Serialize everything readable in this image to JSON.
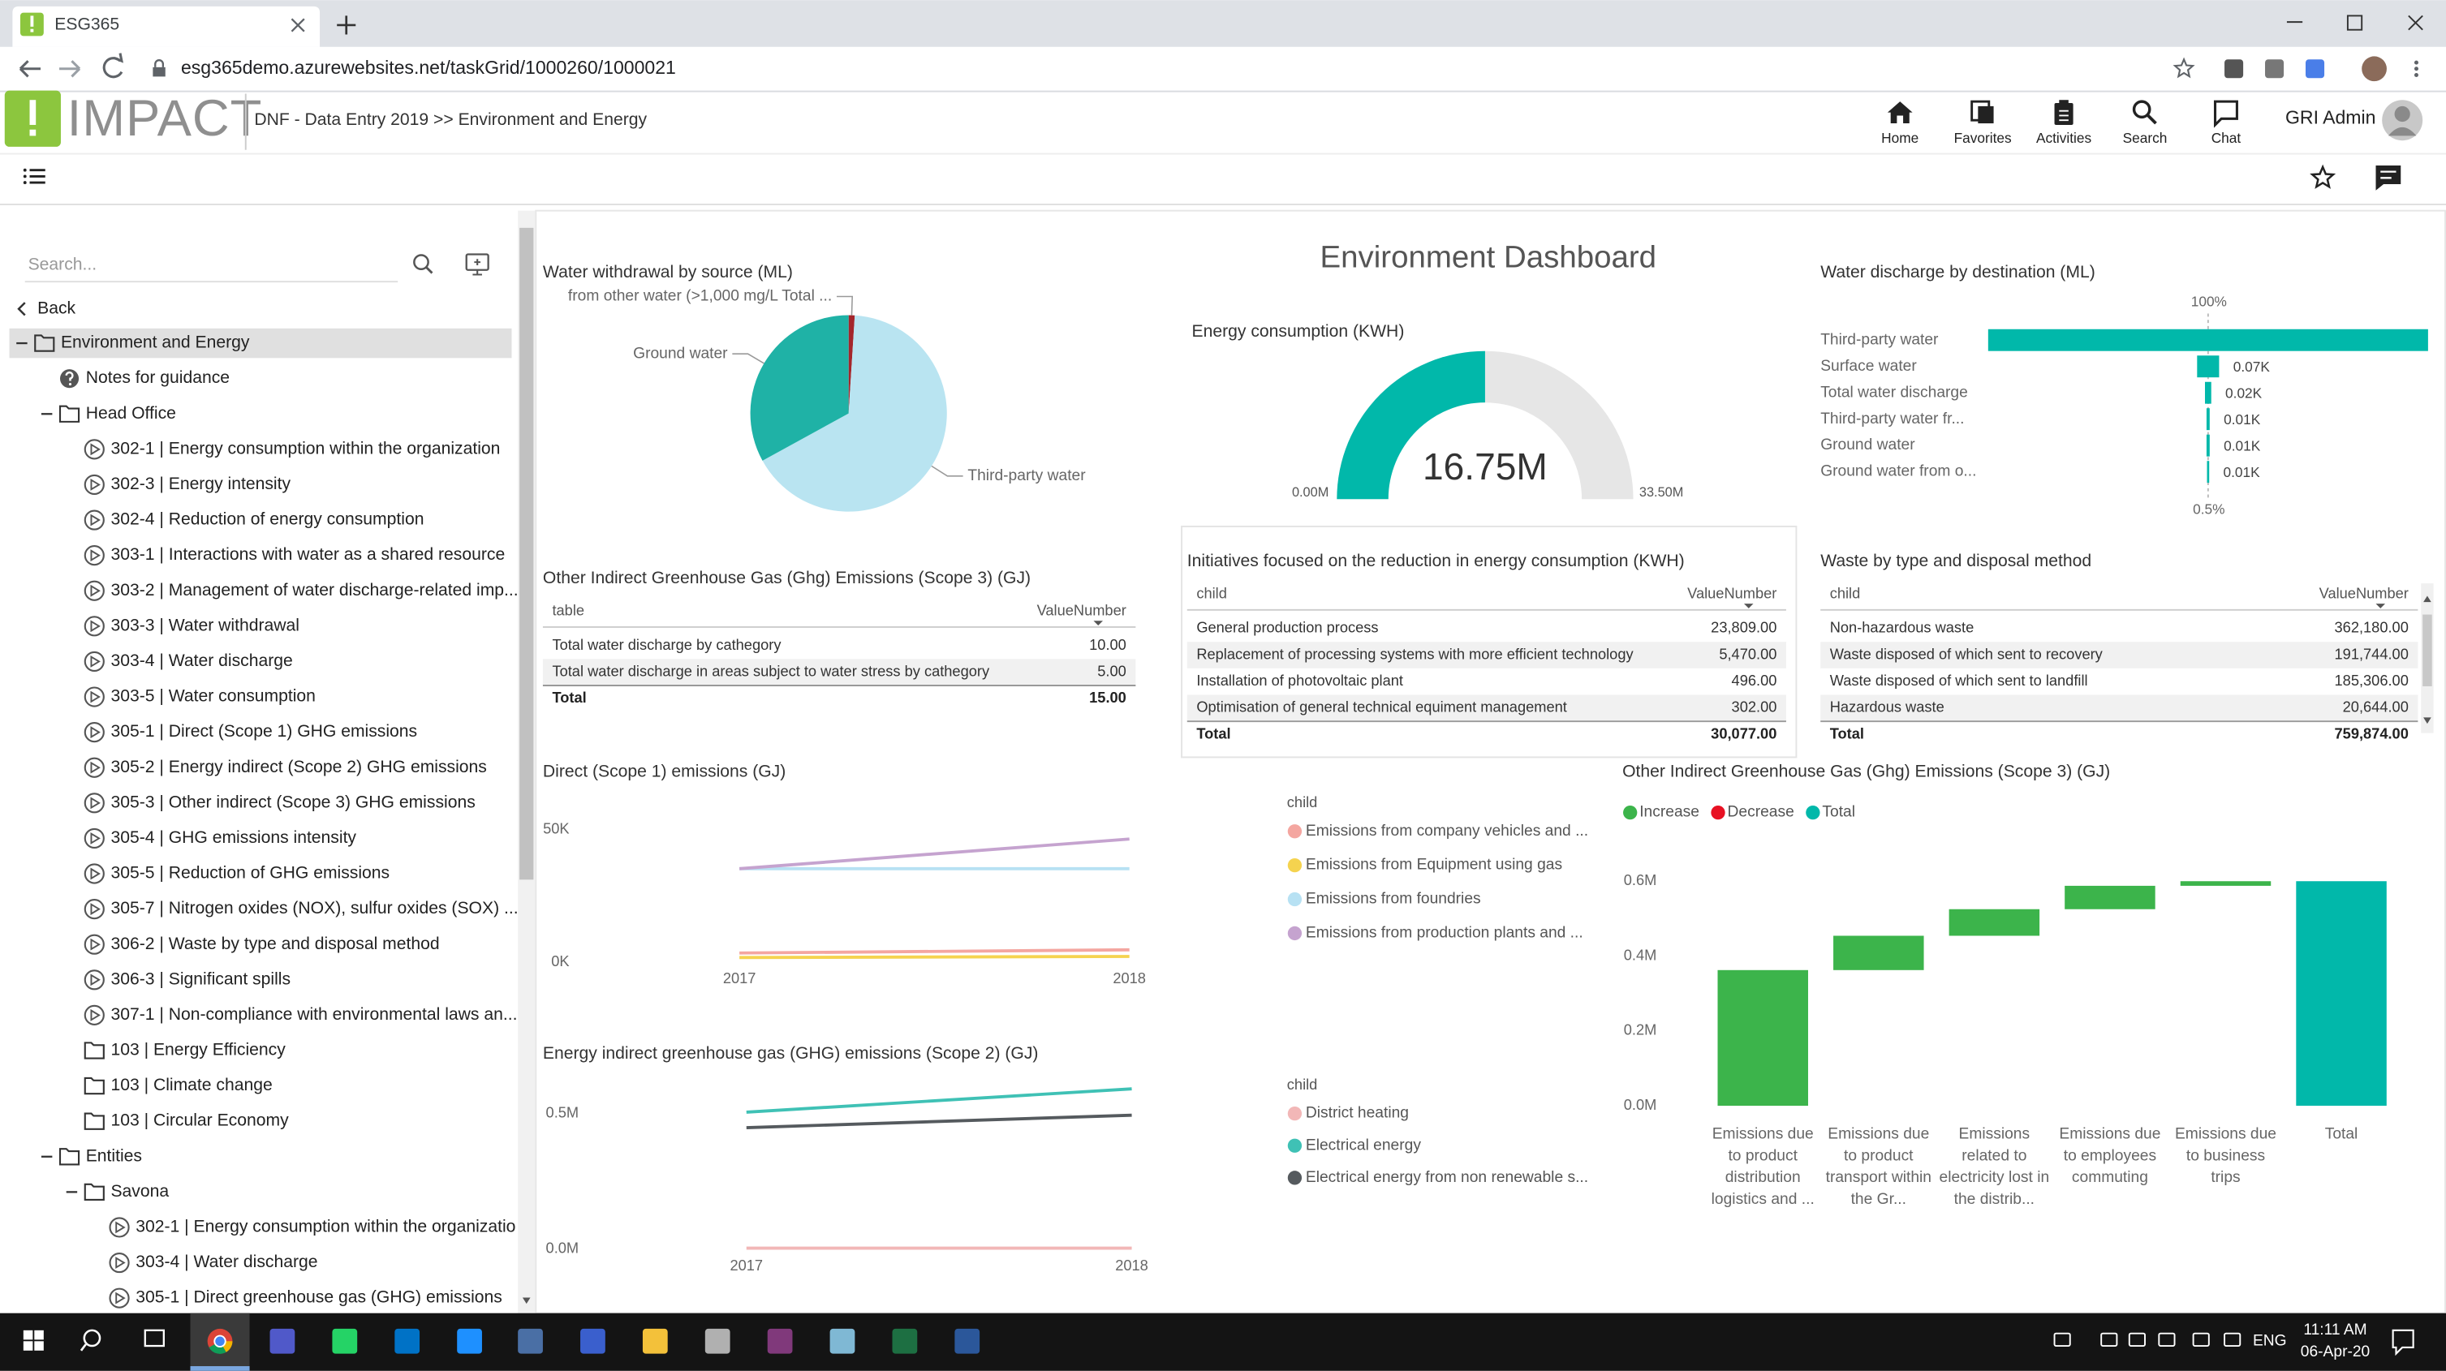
{
  "browser": {
    "tab_title": "ESG365",
    "url": "esg365demo.azurewebsites.net/taskGrid/1000260/1000021"
  },
  "header": {
    "logo": "IMPACT",
    "breadcrumb": "DNF - Data Entry 2019 >> Environment and Energy",
    "nav": [
      "Home",
      "Favorites",
      "Activities",
      "Search",
      "Chat"
    ],
    "user": "GRI Admin"
  },
  "sidebar": {
    "search_placeholder": "Search...",
    "back": "Back",
    "items": [
      {
        "label": "Environment and Energy",
        "level": 0,
        "icon": "folder",
        "expanded": true,
        "selected": true
      },
      {
        "label": "Notes for guidance",
        "level": 1,
        "icon": "help"
      },
      {
        "label": "Head Office",
        "level": 1,
        "icon": "folder",
        "expanded": true
      },
      {
        "label": "302-1 | Energy consumption within the organization",
        "level": 2,
        "icon": "task"
      },
      {
        "label": "302-3 | Energy intensity",
        "level": 2,
        "icon": "task"
      },
      {
        "label": "302-4 | Reduction of energy consumption",
        "level": 2,
        "icon": "task"
      },
      {
        "label": "303-1 | Interactions with water as a shared resource",
        "level": 2,
        "icon": "task"
      },
      {
        "label": "303-2 | Management of water discharge-related imp...",
        "level": 2,
        "icon": "task"
      },
      {
        "label": "303-3 | Water withdrawal",
        "level": 2,
        "icon": "task"
      },
      {
        "label": "303-4 | Water discharge",
        "level": 2,
        "icon": "task"
      },
      {
        "label": "303-5 | Water consumption",
        "level": 2,
        "icon": "task"
      },
      {
        "label": "305-1 | Direct (Scope 1) GHG emissions",
        "level": 2,
        "icon": "task"
      },
      {
        "label": "305-2 | Energy indirect (Scope 2) GHG emissions",
        "level": 2,
        "icon": "task"
      },
      {
        "label": "305-3 | Other indirect (Scope 3) GHG emissions",
        "level": 2,
        "icon": "task"
      },
      {
        "label": "305-4 | GHG emissions intensity",
        "level": 2,
        "icon": "task"
      },
      {
        "label": "305-5 | Reduction of GHG emissions",
        "level": 2,
        "icon": "task"
      },
      {
        "label": "305-7 | Nitrogen oxides (NOX), sulfur oxides (SOX) ...",
        "level": 2,
        "icon": "task"
      },
      {
        "label": "306-2 | Waste by type and disposal method",
        "level": 2,
        "icon": "task"
      },
      {
        "label": "306-3 | Significant spills",
        "level": 2,
        "icon": "task"
      },
      {
        "label": "307-1 | Non-compliance with environmental laws an...",
        "level": 2,
        "icon": "task"
      },
      {
        "label": "103 | Energy Efficiency",
        "level": 2,
        "icon": "folder"
      },
      {
        "label": "103 | Climate change",
        "level": 2,
        "icon": "folder"
      },
      {
        "label": "103 | Circular Economy",
        "level": 2,
        "icon": "folder"
      },
      {
        "label": "Entities",
        "level": 1,
        "icon": "folder",
        "expanded": true
      },
      {
        "label": "Savona",
        "level": 2,
        "icon": "folder",
        "expanded": true
      },
      {
        "label": "302-1 | Energy consumption within the organizatio",
        "level": 3,
        "icon": "task"
      },
      {
        "label": "303-4 | Water discharge",
        "level": 3,
        "icon": "task"
      },
      {
        "label": "305-1 | Direct greenhouse gas (GHG) emissions",
        "level": 3,
        "icon": "task"
      }
    ]
  },
  "dashboard": {
    "title": "Environment Dashboard",
    "water_withdrawal": {
      "type": "pie",
      "title": "Water withdrawal by source (ML)",
      "categories": [
        "from other water (>1,000 mg/L Total ...",
        "Third-party water",
        "Ground water"
      ],
      "values": [
        1,
        66,
        33
      ],
      "colors": [
        "#a4262c",
        "#b9e4f1",
        "#1fb2a6"
      ]
    },
    "energy_gauge": {
      "type": "gauge",
      "title": "Energy consumption (KWH)",
      "value": 16750000,
      "value_label": "16.75M",
      "min": {
        "value": 0,
        "label": "0.00M"
      },
      "max": {
        "value": 33500000,
        "label": "33.50M"
      },
      "color": "#01b8aa",
      "track_color": "#e6e6e6"
    },
    "water_discharge": {
      "type": "funnel",
      "title": "Water discharge by destination (ML)",
      "categories": [
        "Third-party water",
        "Surface water",
        "Total water discharge",
        "Third-party water fr...",
        "Ground water",
        "Ground water from o..."
      ],
      "values": [
        1400,
        70,
        20,
        10,
        10,
        7
      ],
      "value_labels": [
        null,
        "0.07K",
        "0.02K",
        "0.01K",
        "0.01K",
        "0.01K"
      ],
      "top_label": "100%",
      "bottom_label": "0.5%",
      "color": "#01b8aa"
    },
    "scope3_table": {
      "title": "Other Indirect Greenhouse Gas (Ghg) Emissions (Scope 3) (GJ)",
      "columns": [
        "table",
        "ValueNumber"
      ],
      "rows": [
        [
          "Total water discharge by cathegory",
          "10.00"
        ],
        [
          "Total water discharge in areas subject to water stress by cathegory",
          "5.00"
        ]
      ],
      "total": [
        "Total",
        "15.00"
      ]
    },
    "initiatives_table": {
      "title": "Initiatives focused on the reduction in energy consumption (KWH)",
      "columns": [
        "child",
        "ValueNumber"
      ],
      "rows": [
        [
          "General production process",
          "23,809.00"
        ],
        [
          "Replacement of processing systems with more efficient technology",
          "5,470.00"
        ],
        [
          "Installation of photovoltaic plant",
          "496.00"
        ],
        [
          "Optimisation of general technical equiment management",
          "302.00"
        ]
      ],
      "total": [
        "Total",
        "30,077.00"
      ]
    },
    "waste_table": {
      "title": "Waste by type and disposal method",
      "columns": [
        "child",
        "ValueNumber"
      ],
      "rows": [
        [
          "Non-hazardous waste",
          "362,180.00"
        ],
        [
          "Waste disposed of which sent to recovery",
          "191,744.00"
        ],
        [
          "Waste disposed of which sent to landfill",
          "185,306.00"
        ],
        [
          "Hazardous waste",
          "20,644.00"
        ]
      ],
      "total": [
        "Total",
        "759,874.00"
      ]
    },
    "direct_emissions": {
      "type": "line",
      "title": "Direct (Scope 1) emissions (GJ)",
      "categories": [
        "2017",
        "2018"
      ],
      "ylim": [
        0,
        60000
      ],
      "yticks": [
        {
          "value": 0,
          "label": "0K"
        },
        {
          "value": 50000,
          "label": "50K"
        }
      ],
      "legend_title": "child",
      "series": [
        {
          "name": "Emissions from company vehicles and ...",
          "color": "#f4a6a0",
          "values": [
            3500,
            4700
          ]
        },
        {
          "name": "Emissions from Equipment using gas",
          "color": "#f5d34f",
          "values": [
            1800,
            2200
          ]
        },
        {
          "name": "Emissions from foundries",
          "color": "#b7e1f3",
          "values": [
            35300,
            35300
          ]
        },
        {
          "name": "Emissions from production plants and ...",
          "color": "#c5a3cf",
          "values": [
            35300,
            46500
          ]
        }
      ]
    },
    "indirect_emissions": {
      "type": "line",
      "title": "Energy indirect greenhouse gas (GHG) emissions (Scope 2) (GJ)",
      "categories": [
        "2017",
        "2018"
      ],
      "ylim": [
        0,
        600000
      ],
      "yticks": [
        {
          "value": 0,
          "label": "0.0M"
        },
        {
          "value": 500000,
          "label": "0.5M"
        }
      ],
      "legend_title": "child",
      "series": [
        {
          "name": "District heating",
          "color": "#f2b7b7",
          "values": [
            4000,
            4000
          ]
        },
        {
          "name": "Electrical energy",
          "color": "#3fc1b5",
          "values": [
            505000,
            591000
          ]
        },
        {
          "name": "Electrical energy from non renewable s...",
          "color": "#555a5e",
          "values": [
            448000,
            494000
          ]
        }
      ]
    },
    "scope3_waterfall": {
      "type": "waterfall",
      "title": "Other Indirect Greenhouse Gas (Ghg) Emissions (Scope 3) (GJ)",
      "legend": [
        {
          "name": "Increase",
          "color": "#3cb44b"
        },
        {
          "name": "Decrease",
          "color": "#e81123"
        },
        {
          "name": "Total",
          "color": "#01b8aa"
        }
      ],
      "categories": [
        "Emissions due to product distribution logistics and ...",
        "Emissions due to product transport within the Gr...",
        "Emissions related to electricity lost in the distrib...",
        "Emissions due to employees commuting",
        "Emissions due to business trips",
        "Total"
      ],
      "values": [
        362500,
        91700,
        71000,
        62500,
        12300,
        600000
      ],
      "ylim": [
        0,
        650000
      ],
      "yticks": [
        {
          "value": 0,
          "label": "0.0M"
        },
        {
          "value": 200000,
          "label": "0.2M"
        },
        {
          "value": 400000,
          "label": "0.4M"
        },
        {
          "value": 600000,
          "label": "0.6M"
        }
      ]
    }
  },
  "taskbar": {
    "language": "ENG",
    "time": "11:11 AM",
    "date": "06-Apr-20"
  }
}
